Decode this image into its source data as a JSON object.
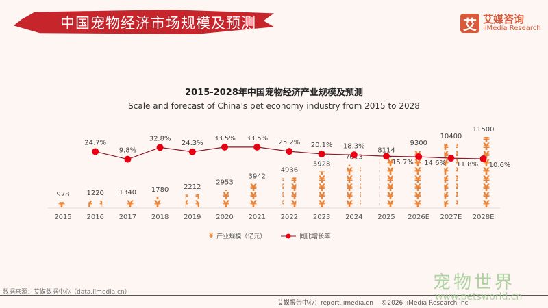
{
  "header": {
    "title": "中国宠物经济市场规模及预测",
    "logo_mark": "艾",
    "logo_cn": "艾媒咨询",
    "logo_en": "iiMedia Research"
  },
  "chart_data": {
    "type": "bar+line",
    "title": "2015-2028年中国宠物经济产业规模及预测",
    "subtitle": "Scale and forecast of China's pet economy industry from 2015 to 2028",
    "categories": [
      "2015",
      "2016",
      "2017",
      "2018",
      "2019",
      "2020",
      "2021",
      "2022",
      "2023",
      "2024",
      "2025",
      "2026E",
      "2027E",
      "2028E"
    ],
    "series": [
      {
        "name": "产业规模（亿元）",
        "type": "pictograph-bar",
        "values": [
          978,
          1220,
          1340,
          1780,
          2212,
          2953,
          3942,
          4936,
          5928,
          7013,
          8114,
          9300,
          10400,
          11500
        ],
        "labels": [
          "978",
          "1220",
          "1340",
          "1780",
          "2212",
          "2953",
          "3942",
          "4936",
          "5928",
          "7013",
          "8114",
          "9300",
          "10400",
          "11500"
        ],
        "color": "#e8843a",
        "icon": "yuan-icon"
      },
      {
        "name": "同比增长率",
        "type": "line",
        "values": [
          null,
          24.7,
          9.8,
          32.8,
          24.3,
          33.5,
          33.5,
          25.2,
          20.1,
          18.3,
          15.7,
          14.6,
          11.8,
          10.6
        ],
        "labels": [
          "",
          "24.7%",
          "9.8%",
          "32.8%",
          "24.3%",
          "33.5%",
          "33.5%",
          "25.2%",
          "20.1%",
          "18.3%",
          "15.7%",
          "14.6%",
          "11.8%",
          "10.6%"
        ],
        "color": "#e60012",
        "line_color": "#8b1a2a"
      }
    ],
    "legend": "bottom",
    "grid": false
  },
  "footer": {
    "source": "数据来源：艾媒数据中心（data.iimedia.cn）",
    "report": "艾媒报告中心：report.iimedia.cn",
    "copyright": "©2026  iiMedia Research  Inc"
  },
  "watermark": {
    "cn": "宠物世界",
    "url": "www.petsworld.cn"
  }
}
